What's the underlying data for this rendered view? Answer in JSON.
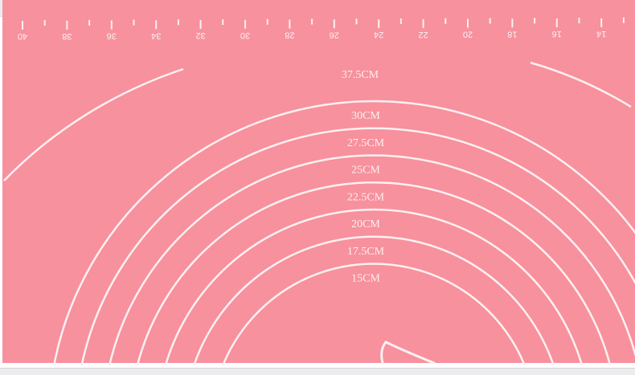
{
  "mat_color": "#f7919d",
  "line_color": "#fdf0f1",
  "ruler": {
    "labels": [
      "40",
      "38",
      "36",
      "34",
      "32",
      "30",
      "28",
      "26",
      "24",
      "22",
      "20",
      "18",
      "16",
      "14"
    ],
    "orientation": "upside-down"
  },
  "circles": [
    {
      "label": "37.5CM",
      "cm": 37.5
    },
    {
      "label": "30CM",
      "cm": 30
    },
    {
      "label": "27.5CM",
      "cm": 27.5
    },
    {
      "label": "25CM",
      "cm": 25
    },
    {
      "label": "22.5CM",
      "cm": 22.5
    },
    {
      "label": "20CM",
      "cm": 20
    },
    {
      "label": "17.5CM",
      "cm": 17.5
    },
    {
      "label": "15CM",
      "cm": 15
    }
  ]
}
